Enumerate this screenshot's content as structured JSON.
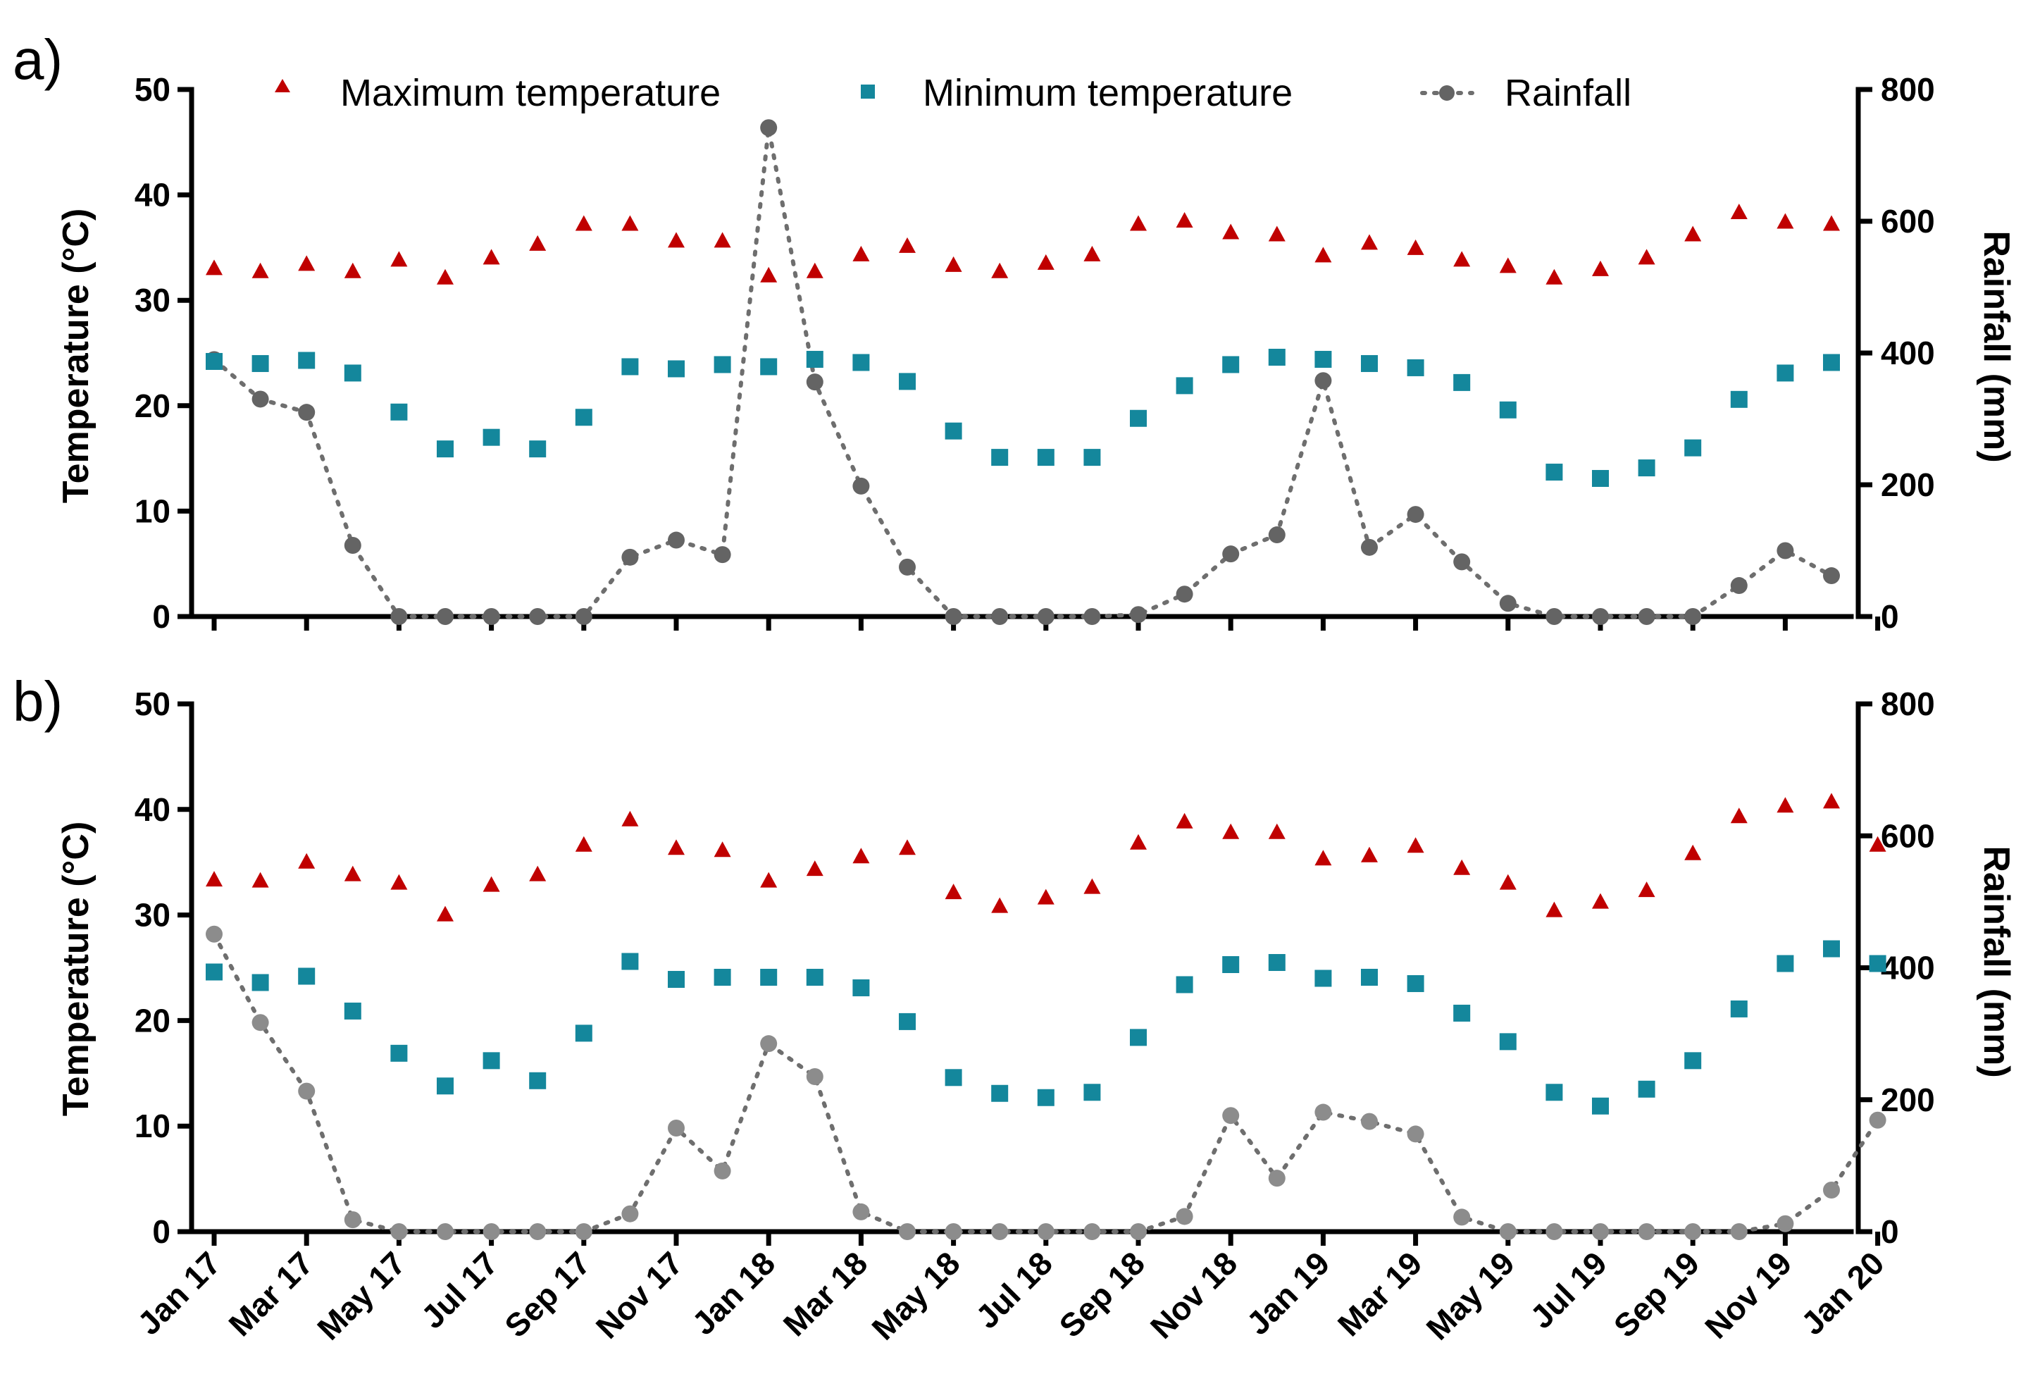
{
  "colors": {
    "max_temp": "#c00000",
    "min_temp": "#14879c",
    "rainfall_a": "#646464",
    "rainfall_b": "#8c8c8c",
    "rain_line": "#6e6e6e"
  },
  "legend": {
    "max_label": "Maximum temperature",
    "min_label": "Minimum temperature",
    "rain_label": "Rainfall",
    "position": "top"
  },
  "chart_data": [
    {
      "panel_label": "a)",
      "type": "scatter",
      "ylabel_left": "Temperature  (°C)",
      "ylabel_right": "Rainfall (mm)",
      "ylim_left": [
        0,
        50
      ],
      "ylim_right": [
        0,
        800
      ],
      "yticks_left": [
        "0",
        "10",
        "20",
        "30",
        "40",
        "50"
      ],
      "yticks_right": [
        "0",
        "200",
        "400",
        "600",
        "800"
      ],
      "show_x_labels": false,
      "series": [
        {
          "name": "Maximum temperature",
          "axis": "left",
          "values": [
            33.0,
            32.7,
            33.4,
            32.7,
            33.8,
            32.1,
            34.0,
            35.3,
            37.2,
            37.2,
            35.6,
            35.6,
            32.3,
            32.7,
            34.3,
            35.1,
            33.3,
            32.7,
            33.5,
            34.3,
            37.2,
            37.5,
            36.4,
            36.2,
            34.2,
            35.4,
            34.9,
            33.8,
            33.2,
            32.1,
            32.9,
            34.0,
            36.2,
            38.3,
            37.4,
            37.2
          ]
        },
        {
          "name": "Minimum temperature",
          "axis": "left",
          "values": [
            24.2,
            24.0,
            24.3,
            23.1,
            19.4,
            15.9,
            17.0,
            15.9,
            18.9,
            23.7,
            23.5,
            23.9,
            23.7,
            24.4,
            24.1,
            22.3,
            17.6,
            15.1,
            15.1,
            15.1,
            18.8,
            21.9,
            23.9,
            24.6,
            24.4,
            24.0,
            23.6,
            22.2,
            19.6,
            13.7,
            13.1,
            14.1,
            16.0,
            20.6,
            23.1,
            24.1
          ]
        },
        {
          "name": "Rainfall",
          "axis": "right",
          "values": [
            390,
            330,
            310,
            108,
            0,
            0,
            0,
            0,
            0,
            90,
            116,
            94,
            742,
            356,
            198,
            75,
            0,
            0,
            0,
            0,
            3,
            34,
            95,
            124,
            358,
            105,
            155,
            83,
            20,
            0,
            0,
            0,
            0,
            47,
            100,
            62
          ]
        }
      ]
    },
    {
      "panel_label": "b)",
      "type": "scatter",
      "ylabel_left": "Temperature  (°C)",
      "ylabel_right": "Rainfall (mm)",
      "ylim_left": [
        0,
        50
      ],
      "ylim_right": [
        0,
        800
      ],
      "yticks_left": [
        "0",
        "10",
        "20",
        "30",
        "40",
        "50"
      ],
      "yticks_right": [
        "0",
        "200",
        "400",
        "600",
        "800"
      ],
      "show_x_labels": true,
      "xticklabels": [
        "Jan 17",
        "Mar 17",
        "May 17",
        "Jul 17",
        "Sep 17",
        "Nov 17",
        "Jan 18",
        "Mar 18",
        "May 18",
        "Jul 18",
        "Sep 18",
        "Nov 18",
        "Jan 19",
        "Mar 19",
        "May 19",
        "Jul 19",
        "Sep 19",
        "Nov 19",
        "Jan 20"
      ],
      "series": [
        {
          "name": "Maximum temperature",
          "axis": "left",
          "values": [
            33.3,
            33.2,
            35.0,
            33.8,
            33.0,
            30.0,
            32.8,
            33.8,
            36.6,
            39.0,
            36.3,
            36.1,
            33.2,
            34.3,
            35.5,
            36.3,
            32.1,
            30.8,
            31.6,
            32.6,
            36.8,
            38.8,
            37.8,
            37.8,
            35.3,
            35.6,
            36.5,
            34.4,
            33.0,
            30.4,
            31.2,
            32.3,
            35.8,
            39.3,
            40.3,
            40.7,
            36.6
          ]
        },
        {
          "name": "Minimum temperature",
          "axis": "left",
          "values": [
            24.6,
            23.6,
            24.2,
            20.9,
            16.9,
            13.8,
            16.2,
            14.3,
            18.8,
            25.6,
            23.9,
            24.1,
            24.1,
            24.1,
            23.1,
            19.9,
            14.6,
            13.1,
            12.7,
            13.2,
            18.4,
            23.4,
            25.3,
            25.5,
            24.0,
            24.1,
            23.5,
            20.7,
            18.0,
            13.2,
            11.9,
            13.5,
            16.2,
            21.1,
            25.4,
            26.8,
            25.4
          ]
        },
        {
          "name": "Rainfall",
          "axis": "right",
          "values": [
            451,
            317,
            213,
            18,
            0,
            0,
            0,
            0,
            0,
            27,
            157,
            92,
            285,
            235,
            30,
            0,
            0,
            0,
            0,
            0,
            0,
            23,
            176,
            81,
            181,
            167,
            148,
            22,
            0,
            0,
            0,
            0,
            0,
            0,
            12,
            63,
            169
          ]
        }
      ]
    }
  ]
}
